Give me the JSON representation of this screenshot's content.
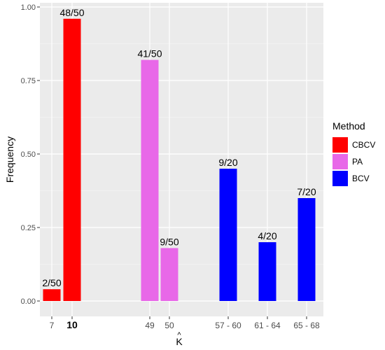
{
  "chart_data": {
    "type": "bar",
    "ylabel": "Frequency",
    "xlabel": "K",
    "xlabel_hat": "^",
    "ylim": [
      0,
      1
    ],
    "yticks": [
      "0.00",
      "0.25",
      "0.50",
      "0.75",
      "1.00"
    ],
    "ytick_values": [
      0,
      0.25,
      0.5,
      0.75,
      1.0
    ],
    "grid": true,
    "legend": {
      "title": "Method",
      "placement": "right",
      "entries": [
        {
          "name": "CBCV",
          "color": "#ff0000"
        },
        {
          "name": "PA",
          "color": "#e868e8"
        },
        {
          "name": "BCV",
          "color": "#0000ff"
        }
      ]
    },
    "bars": [
      {
        "category": "7",
        "method": "CBCV",
        "value": 0.04,
        "label": "2/50",
        "bold": false
      },
      {
        "category": "10",
        "method": "CBCV",
        "value": 0.96,
        "label": "48/50",
        "bold": true
      },
      {
        "category": "49",
        "method": "PA",
        "value": 0.82,
        "label": "41/50",
        "bold": false
      },
      {
        "category": "50",
        "method": "PA",
        "value": 0.18,
        "label": "9/50",
        "bold": false
      },
      {
        "category": "57 - 60",
        "method": "BCV",
        "value": 0.45,
        "label": "9/20",
        "bold": false
      },
      {
        "category": "61 - 64",
        "method": "BCV",
        "value": 0.2,
        "label": "4/20",
        "bold": false
      },
      {
        "category": "65 - 68",
        "method": "BCV",
        "value": 0.35,
        "label": "7/20",
        "bold": false
      }
    ]
  }
}
